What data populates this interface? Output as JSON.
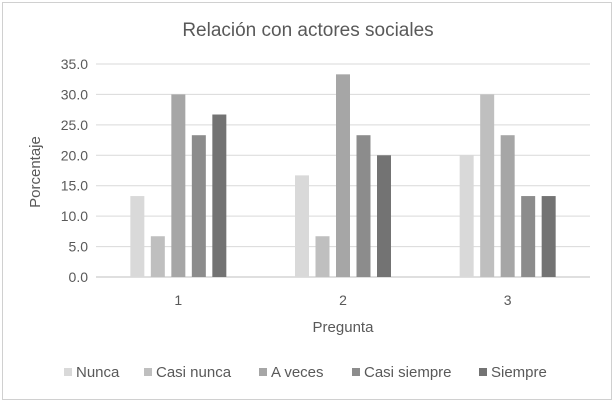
{
  "chart_data": {
    "type": "bar",
    "title": "Relación con actores sociales",
    "xlabel": "Pregunta",
    "ylabel": "Porcentaje",
    "categories": [
      "1",
      "2",
      "3"
    ],
    "ylim": [
      0,
      35
    ],
    "yticks": [
      "0.0",
      "5.0",
      "10.0",
      "15.0",
      "20.0",
      "25.0",
      "30.0",
      "35.0"
    ],
    "grid": true,
    "legend_position": "bottom",
    "series": [
      {
        "name": "Nunca",
        "color": "#d9d9d9",
        "values": [
          13.3,
          16.7,
          20.0
        ]
      },
      {
        "name": "Casi nunca",
        "color": "#bfbfbf",
        "values": [
          6.7,
          6.7,
          30.0
        ]
      },
      {
        "name": "A veces",
        "color": "#a6a6a6",
        "values": [
          30.0,
          33.3,
          23.3
        ]
      },
      {
        "name": "Casi siempre",
        "color": "#8c8c8c",
        "values": [
          23.3,
          23.3,
          13.3
        ]
      },
      {
        "name": "Siempre",
        "color": "#737373",
        "values": [
          26.7,
          20.0,
          13.3
        ]
      }
    ]
  }
}
